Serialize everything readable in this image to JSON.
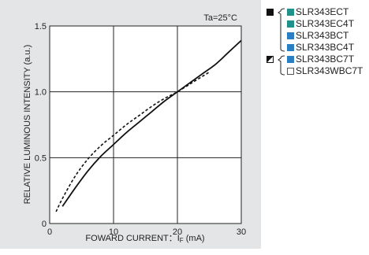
{
  "chart_data": {
    "type": "line",
    "title": "",
    "annotation": "Ta=25°C",
    "xlabel": "FOWARD CURRENT：IF (mA)",
    "xlabel_main": "FOWARD CURRENT：I",
    "xlabel_sub": "F",
    "xlabel_unit": " (mA)",
    "ylabel": "RELATIVE LUMINOUS INTENSITY (a.u.)",
    "xlim": [
      0,
      30
    ],
    "ylim": [
      0,
      1.5
    ],
    "xticks": [
      0,
      10,
      20,
      30
    ],
    "yticks": [
      0,
      0.5,
      1.0,
      1.5
    ],
    "xtick_labels": [
      "0",
      "10",
      "20",
      "30"
    ],
    "ytick_labels": [
      "0",
      "0.5",
      "1.0",
      "1.5"
    ],
    "grid": true,
    "legend_position": "right",
    "series": [
      {
        "style": "solid",
        "color": "#111111",
        "x": [
          2,
          4,
          6,
          8,
          10,
          12,
          14,
          16,
          18,
          20,
          22,
          24,
          26,
          28,
          30
        ],
        "y": [
          0.13,
          0.27,
          0.4,
          0.51,
          0.6,
          0.69,
          0.77,
          0.85,
          0.93,
          1.0,
          1.07,
          1.14,
          1.21,
          1.3,
          1.39
        ]
      },
      {
        "style": "dashed",
        "color": "#111111",
        "x": [
          1,
          2,
          4,
          6,
          8,
          10,
          12,
          14,
          16,
          18,
          20,
          22,
          24,
          25
        ],
        "y": [
          0.09,
          0.19,
          0.36,
          0.49,
          0.59,
          0.67,
          0.75,
          0.82,
          0.89,
          0.95,
          1.0,
          1.06,
          1.12,
          1.15
        ]
      }
    ]
  },
  "legend": {
    "groups": [
      {
        "marker": "solid",
        "items": [
          {
            "label": "SLR343ECT",
            "color": "#21918c"
          },
          {
            "label": "SLR343EC4T",
            "color": "#21918c"
          },
          {
            "label": "SLR343BCT",
            "color": "#2a7fc4"
          },
          {
            "label": "SLR343BC4T",
            "color": "#2a7fc4"
          }
        ]
      },
      {
        "marker": "half",
        "items": [
          {
            "label": "SLR343BC7T",
            "color": "#2a7fc4"
          },
          {
            "label": "SLR343WBC7T",
            "color": "#ffffff"
          }
        ]
      }
    ]
  }
}
